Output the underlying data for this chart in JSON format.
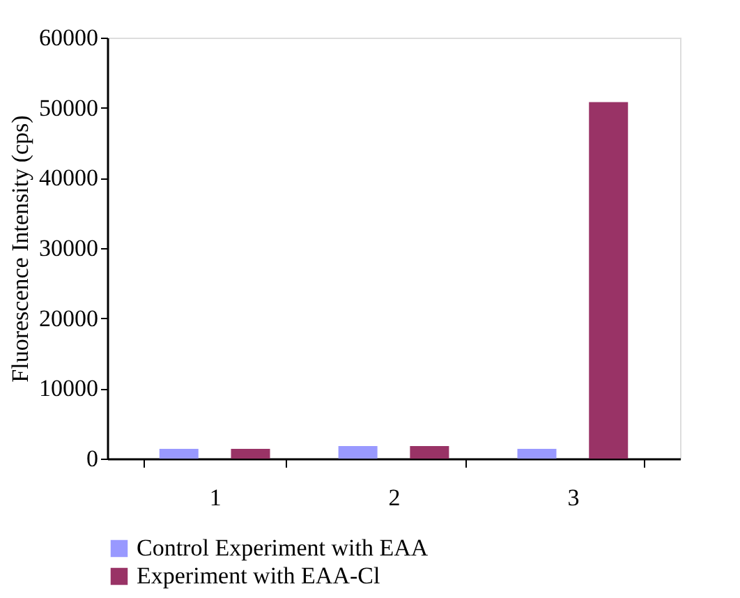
{
  "chart_data": {
    "type": "bar",
    "ylabel": "Fluorescence Intensity (cps)",
    "categories": [
      "1",
      "2",
      "3"
    ],
    "series": [
      {
        "name": "Control Experiment with EAA",
        "color": "#9999ff",
        "values": [
          1400,
          1800,
          1400
        ]
      },
      {
        "name": "Experiment with EAA-Cl",
        "color": "#993366",
        "values": [
          1400,
          1800,
          50800
        ]
      }
    ],
    "ylim": [
      0,
      60000
    ],
    "yticks": [
      0,
      10000,
      20000,
      30000,
      40000,
      50000,
      60000
    ],
    "grid": false,
    "legend": "bottom"
  }
}
